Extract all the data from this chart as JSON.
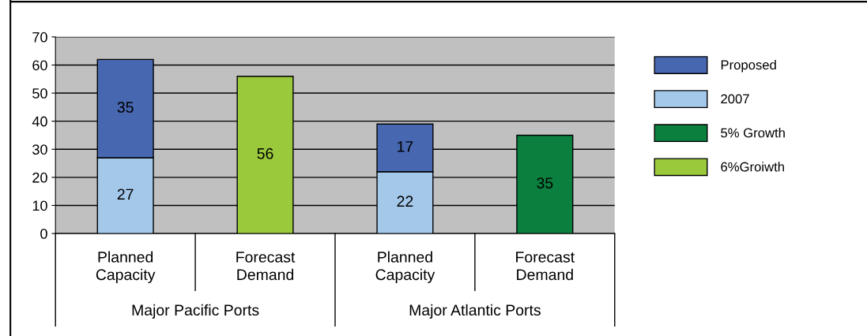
{
  "chart_data": {
    "type": "bar",
    "stacked": true,
    "data_labels": true,
    "categories": [
      "Planned Capacity",
      "Forecast Demand",
      "Planned Capacity",
      "Forecast Demand"
    ],
    "series": [
      {
        "name": "2007",
        "color": "#a3c8ea",
        "values": [
          27,
          null,
          22,
          null
        ]
      },
      {
        "name": "Proposed",
        "color": "#4767b0",
        "values": [
          35,
          null,
          17,
          null
        ]
      },
      {
        "name": "5% Growth",
        "color": "#0a7f3e",
        "values": [
          null,
          null,
          null,
          35
        ]
      },
      {
        "name": "6%Groiwth",
        "color": "#9ac93c",
        "values": [
          null,
          56,
          null,
          null
        ]
      }
    ],
    "annotations": [
      "Major Pacific Ports",
      "Major Atlantic Ports"
    ],
    "ylim": [
      0,
      70
    ],
    "yticks": [
      0,
      10,
      20,
      30,
      40,
      50,
      60,
      70
    ],
    "grid": "y",
    "legend": "right"
  }
}
